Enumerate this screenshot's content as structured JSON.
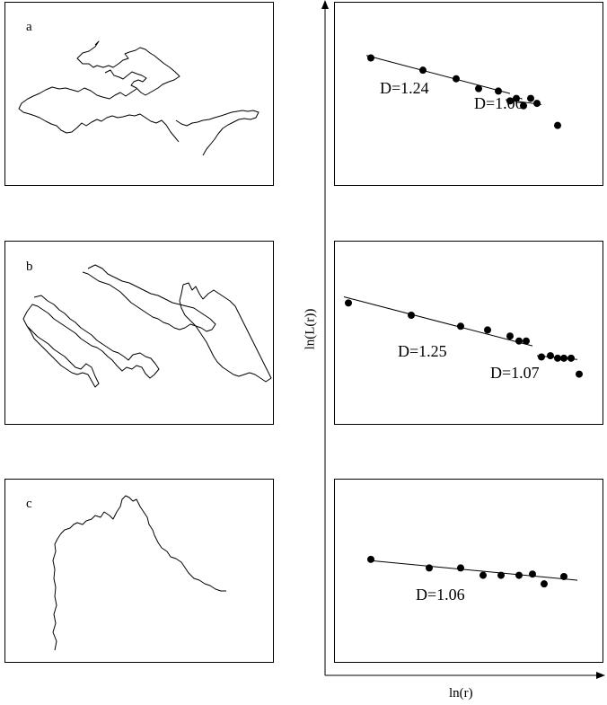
{
  "panels": [
    {
      "id": "a",
      "label": "a"
    },
    {
      "id": "b",
      "label": "b"
    },
    {
      "id": "c",
      "label": "c"
    }
  ],
  "axes": {
    "xlabel": "ln(r)",
    "ylabel": "ln(L(r))"
  },
  "chart_data": [
    {
      "type": "scatter",
      "panel": "a",
      "title": "",
      "xlabel": "",
      "ylabel": "",
      "series": [
        {
          "x": [
            0.4,
            0.98,
            1.35,
            1.6,
            1.82,
            1.95,
            2.02,
            2.1,
            2.18,
            2.25,
            2.48
          ],
          "y": [
            5.05,
            4.95,
            4.88,
            4.8,
            4.78,
            4.7,
            4.72,
            4.66,
            4.72,
            4.68,
            4.5
          ]
        }
      ],
      "fits": [
        {
          "label": "D=1.24",
          "x": [
            0.35,
            1.95
          ],
          "y": [
            5.07,
            4.76
          ]
        },
        {
          "label": "D=1.06",
          "x": [
            1.9,
            2.3
          ],
          "y": [
            4.71,
            4.67
          ]
        }
      ],
      "xlim": [
        0,
        3
      ],
      "ylim": [
        4,
        5.5
      ]
    },
    {
      "type": "scatter",
      "panel": "b",
      "title": "",
      "xlabel": "",
      "ylabel": "",
      "series": [
        {
          "x": [
            0.15,
            0.85,
            1.4,
            1.7,
            1.95,
            2.05,
            2.13,
            2.3,
            2.4,
            2.48,
            2.55,
            2.63,
            2.72
          ],
          "y": [
            5.0,
            4.9,
            4.81,
            4.78,
            4.73,
            4.69,
            4.69,
            4.56,
            4.57,
            4.55,
            4.55,
            4.55,
            4.42
          ]
        }
      ],
      "fits": [
        {
          "label": "D=1.25",
          "x": [
            0.1,
            2.2
          ],
          "y": [
            5.05,
            4.65
          ]
        },
        {
          "label": "D=1.07",
          "x": [
            2.25,
            2.7
          ],
          "y": [
            4.57,
            4.54
          ]
        }
      ],
      "xlim": [
        0,
        3
      ],
      "ylim": [
        4,
        5.5
      ]
    },
    {
      "type": "scatter",
      "panel": "c",
      "title": "",
      "xlabel": "",
      "ylabel": "",
      "series": [
        {
          "x": [
            0.4,
            1.05,
            1.4,
            1.65,
            1.85,
            2.05,
            2.2,
            2.33,
            2.55
          ],
          "y": [
            4.85,
            4.78,
            4.78,
            4.72,
            4.72,
            4.72,
            4.73,
            4.65,
            4.71
          ]
        }
      ],
      "fits": [
        {
          "label": "D=1.06",
          "x": [
            0.4,
            2.7
          ],
          "y": [
            4.84,
            4.68
          ]
        }
      ],
      "xlim": [
        0,
        3
      ],
      "ylim": [
        4,
        5.5
      ]
    }
  ]
}
